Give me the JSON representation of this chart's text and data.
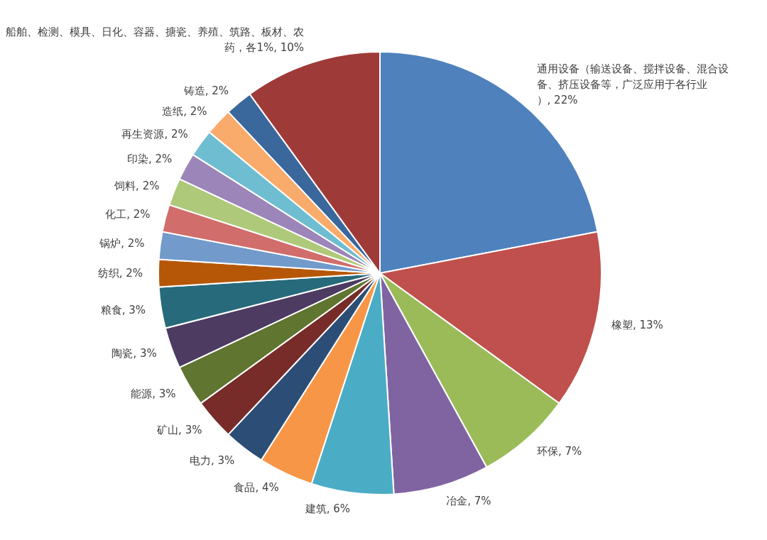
{
  "chart_data": {
    "type": "pie",
    "categories": [
      "通用设备（输送设备、搅拌设备、混合设备、挤压设备等，广泛应用于各行业）",
      "橡塑",
      "环保",
      "冶金",
      "建筑",
      "食品",
      "电力",
      "矿山",
      "能源",
      "陶瓷",
      "粮食",
      "纺织",
      "锅炉",
      "化工",
      "饲料",
      "印染",
      "再生资源",
      "造纸",
      "铸造",
      "船舶、检测、模具、日化、容器、搪瓷、养殖、筑路、板材、农药，各1%"
    ],
    "values": [
      22,
      13,
      7,
      7,
      6,
      4,
      3,
      3,
      3,
      3,
      3,
      2,
      2,
      2,
      2,
      2,
      2,
      2,
      2,
      10
    ],
    "value_labels": [
      "22%",
      "13%",
      "7%",
      "7%",
      "6%",
      "4%",
      "3%",
      "3%",
      "3%",
      "3%",
      "3%",
      "2%",
      "2%",
      "2%",
      "2%",
      "2%",
      "2%",
      "2%",
      "2%",
      "10%"
    ],
    "colors": [
      "#4f81bd",
      "#c0504d",
      "#9bbb59",
      "#8064a2",
      "#4bacc6",
      "#f79646",
      "#2c4d75",
      "#772c2a",
      "#5f7530",
      "#4d3b62",
      "#276a7c",
      "#b65708",
      "#729aca",
      "#d16d6a",
      "#afc97a",
      "#9c85b8",
      "#6fbdd1",
      "#f9ab6b",
      "#3a679c",
      "#9e3a38"
    ]
  }
}
